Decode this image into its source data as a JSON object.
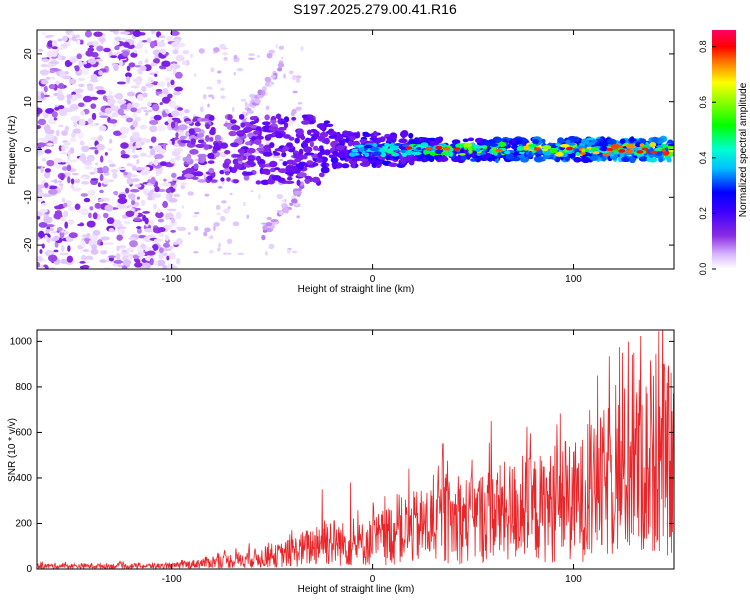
{
  "figure_title": "S197.2025.279.00.41.R16",
  "chart_data": [
    {
      "type": "heatmap",
      "title": "S197.2025.279.00.41.R16",
      "xlabel": "Height of straight line (km)",
      "ylabel": "Frequency (Hz)",
      "xlim": [
        -167,
        150
      ],
      "ylim": [
        -25,
        25
      ],
      "x_ticks": [
        -100,
        0,
        100
      ],
      "x_tick_labels": [
        "-100",
        "0",
        "100"
      ],
      "y_ticks": [
        -20,
        -10,
        0,
        10,
        20
      ],
      "y_tick_labels": [
        "-20",
        "-10",
        "0",
        "10",
        "20"
      ],
      "colorbar": {
        "label": "Normalized spectral amplitude",
        "range": [
          0.0,
          0.86
        ],
        "ticks": [
          0.0,
          0.2,
          0.4,
          0.6,
          0.8
        ],
        "tick_labels": [
          "0.0",
          "0.2",
          "0.4",
          "0.6",
          "0.8"
        ],
        "colormap": [
          "#ffffff",
          "#d9b8ff",
          "#8a2be2",
          "#5a00ff",
          "#0000ff",
          "#00bfff",
          "#00ffd0",
          "#00ff00",
          "#ffff00",
          "#ff8000",
          "#ff0000",
          "#ff0066"
        ]
      },
      "features": [
        {
          "description": "scattered noise",
          "x_range": [
            -167,
            -95
          ],
          "y_range": [
            -25,
            25
          ],
          "amplitude": 0.1
        },
        {
          "description": "diagonal streak",
          "x_range": [
            -65,
            -45
          ],
          "y_range": [
            5,
            18
          ],
          "amplitude": 0.08
        },
        {
          "description": "signal band",
          "x_range": [
            -95,
            150
          ],
          "y_center": 0,
          "amplitude_range": [
            0.3,
            0.85
          ]
        }
      ]
    },
    {
      "type": "line",
      "xlabel": "Height of straight line (km)",
      "ylabel": "SNR (10 * v/v)",
      "xlim": [
        -167,
        150
      ],
      "ylim": [
        0,
        1050
      ],
      "x_ticks": [
        -100,
        0,
        100
      ],
      "x_tick_labels": [
        "-100",
        "0",
        "100"
      ],
      "y_ticks": [
        0,
        200,
        400,
        600,
        800,
        1000
      ],
      "y_tick_labels": [
        "0",
        "200",
        "400",
        "600",
        "800",
        "1000"
      ],
      "series": [
        {
          "name": "SNR",
          "color": "#e8262a",
          "envelope_x": [
            -167,
            -100,
            -90,
            -80,
            -70,
            -60,
            -50,
            -40,
            -30,
            -25,
            -20,
            -10,
            0,
            10,
            20,
            30,
            40,
            50,
            60,
            70,
            80,
            90,
            100,
            110,
            120,
            130,
            140,
            150
          ],
          "envelope_y": [
            25,
            25,
            40,
            60,
            70,
            90,
            100,
            140,
            190,
            260,
            230,
            190,
            230,
            300,
            340,
            380,
            400,
            420,
            460,
            480,
            500,
            520,
            560,
            620,
            780,
            850,
            880,
            900
          ],
          "peaks": [
            {
              "x": -25,
              "y": 350
            },
            {
              "x": -11,
              "y": 380
            },
            {
              "x": 18,
              "y": 440
            },
            {
              "x": 35,
              "y": 550
            },
            {
              "x": 59,
              "y": 650
            },
            {
              "x": 96,
              "y": 560
            },
            {
              "x": 112,
              "y": 850
            },
            {
              "x": 123,
              "y": 975
            },
            {
              "x": 130,
              "y": 950
            },
            {
              "x": 141,
              "y": 945
            },
            {
              "x": 145,
              "y": 900
            }
          ]
        }
      ]
    }
  ]
}
